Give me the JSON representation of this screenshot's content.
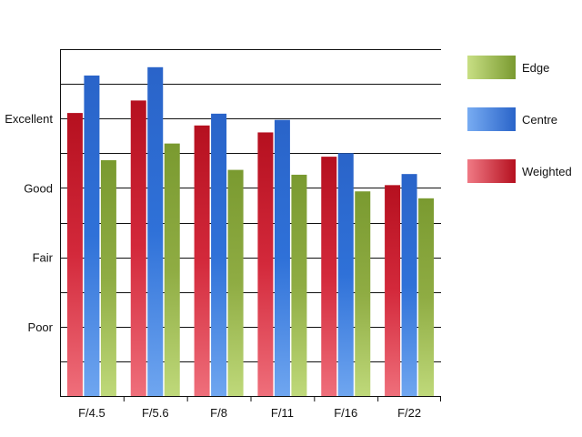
{
  "chart_data": {
    "type": "bar",
    "title": "",
    "xlabel": "",
    "ylabel": "",
    "categories": [
      "F/4.5",
      "F/5.6",
      "F/8",
      "F/11",
      "F/16",
      "F/22"
    ],
    "series": [
      {
        "name": "Weighted",
        "values": [
          4.08,
          4.26,
          3.9,
          3.8,
          3.45,
          3.04
        ],
        "color": "#c8142a"
      },
      {
        "name": "Centre",
        "values": [
          4.62,
          4.74,
          4.07,
          3.98,
          3.5,
          3.2
        ],
        "color": "#2e6fd6"
      },
      {
        "name": "Edge",
        "values": [
          3.4,
          3.64,
          3.26,
          3.19,
          2.95,
          2.85
        ],
        "color": "#86a43c"
      }
    ],
    "ylim": [
      0,
      5
    ],
    "yticks": [
      {
        "value": 1,
        "label": "Poor"
      },
      {
        "value": 2,
        "label": "Fair"
      },
      {
        "value": 3,
        "label": "Good"
      },
      {
        "value": 4,
        "label": "Excellent"
      }
    ],
    "grid": true,
    "legend": {
      "placement": "right",
      "order": [
        "Edge",
        "Centre",
        "Weighted"
      ]
    }
  }
}
